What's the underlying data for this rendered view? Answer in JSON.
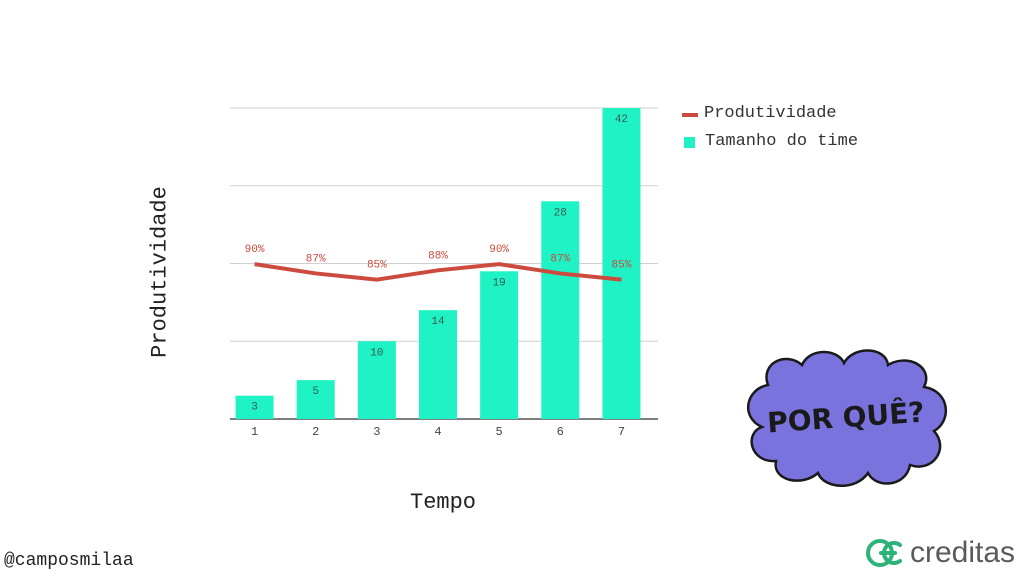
{
  "chart_data": {
    "type": "bar",
    "categories": [
      "1",
      "2",
      "3",
      "4",
      "5",
      "6",
      "7"
    ],
    "series": [
      {
        "name": "Tamanho do time",
        "type": "bar",
        "values": [
          3,
          5,
          10,
          14,
          19,
          28,
          42
        ],
        "color": "#1ff2c4"
      },
      {
        "name": "Produtividade",
        "type": "line",
        "values": [
          90,
          87,
          85,
          88,
          90,
          87,
          85
        ],
        "labels": [
          "90%",
          "87%",
          "85%",
          "88%",
          "90%",
          "87%",
          "85%"
        ],
        "color": "#cc4a3e"
      }
    ],
    "ylim_bars": [
      0,
      40
    ],
    "ylim_line": [
      0,
      100
    ],
    "xlabel": "Tempo",
    "ylabel": "Produtividade",
    "grid": true,
    "legend_position": "right"
  },
  "legend": {
    "line_label": "Produtividade",
    "bar_label": "Tamanho do time"
  },
  "author_handle": "@camposmilaa",
  "callout_text": "POR QUÊ?",
  "brand": {
    "name": "creditas",
    "color": "#2db37a"
  }
}
